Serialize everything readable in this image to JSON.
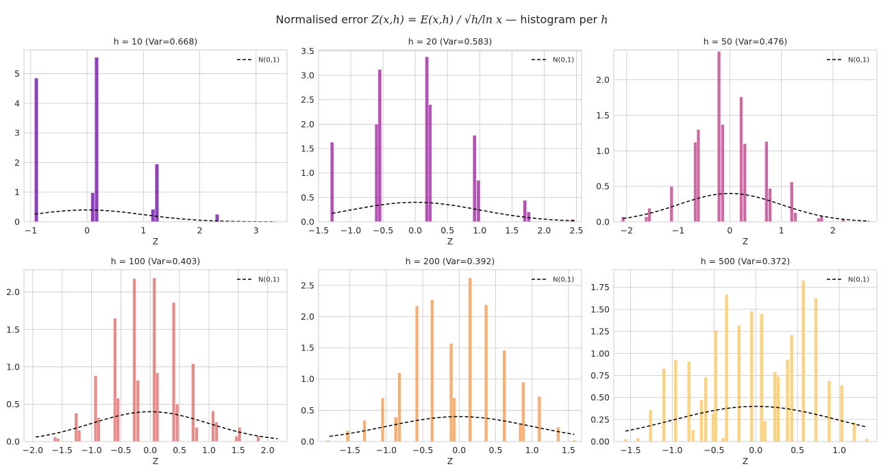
{
  "title": "Normalised error Z(x,h) = E(x,h) / √(h/ln x) — histogram per h",
  "title_parts": {
    "lead": "Normalised error ",
    "math": "Z(x,h) = E(x,h) / √h/ln x",
    "tail": " — histogram per ",
    "h": "h"
  },
  "chart_data": [
    {
      "type": "bar",
      "title": "h = 10  (Var=0.668)",
      "xlabel": "Z",
      "color": "#6a00a8",
      "xlim": [
        -1.12,
        3.55
      ],
      "ylim": [
        0,
        5.8
      ],
      "xticks": [
        -1,
        0,
        1,
        2,
        3
      ],
      "xticklabels": [
        "−1",
        "0",
        "1",
        "2",
        "3"
      ],
      "yticks": [
        0,
        1,
        2,
        3,
        4,
        5
      ],
      "yticklabels": [
        "0",
        "1",
        "2",
        "3",
        "4",
        "5"
      ],
      "bin_width": 0.066,
      "bins": [
        [
          -0.9,
          4.85
        ],
        [
          0.1,
          0.98
        ],
        [
          0.17,
          5.55
        ],
        [
          1.17,
          0.42
        ],
        [
          1.24,
          1.95
        ],
        [
          2.31,
          0.25
        ]
      ],
      "legend": "N(0,1)",
      "normal_range": [
        -0.93,
        3.35
      ]
    },
    {
      "type": "bar",
      "title": "h = 20  (Var=0.583)",
      "xlabel": "Z",
      "color": "#9c179e",
      "xlim": [
        -1.5,
        2.58
      ],
      "ylim": [
        0,
        3.52
      ],
      "xticks": [
        -1.5,
        -1.0,
        -0.5,
        0.0,
        0.5,
        1.0,
        1.5,
        2.0,
        2.5
      ],
      "xticklabels": [
        "−1.5",
        "−1.0",
        "−0.5",
        "0.0",
        "0.5",
        "1.0",
        "1.5",
        "2.0",
        "2.5"
      ],
      "yticks": [
        0,
        0.5,
        1.0,
        1.5,
        2.0,
        2.5,
        3.0,
        3.5
      ],
      "yticklabels": [
        "0.0",
        "0.5",
        "1.0",
        "1.5",
        "2.0",
        "2.5",
        "3.0",
        "3.5"
      ],
      "bin_width": 0.054,
      "bins": [
        [
          -1.29,
          1.63
        ],
        [
          -0.6,
          2.0
        ],
        [
          -0.55,
          3.12
        ],
        [
          0.18,
          3.38
        ],
        [
          0.23,
          2.4
        ],
        [
          0.92,
          1.77
        ],
        [
          0.98,
          0.85
        ],
        [
          1.7,
          0.44
        ],
        [
          1.76,
          0.2
        ],
        [
          2.44,
          0.05
        ]
      ],
      "legend": "N(0,1)",
      "normal_range": [
        -1.29,
        2.47
      ]
    },
    {
      "type": "bar",
      "title": "h = 50  (Var=0.476)",
      "xlabel": "Z",
      "color": "#bd3786",
      "xlim": [
        -2.25,
        2.85
      ],
      "ylim": [
        0,
        2.42
      ],
      "xticks": [
        -2,
        -1,
        0,
        1,
        2
      ],
      "xticklabels": [
        "−2",
        "−1",
        "0",
        "1",
        "2"
      ],
      "yticks": [
        0,
        0.5,
        1.0,
        1.5,
        2.0
      ],
      "yticklabels": [
        "0.0",
        "0.5",
        "1.0",
        "1.5",
        "2.0"
      ],
      "bin_width": 0.063,
      "bins": [
        [
          -2.07,
          0.07
        ],
        [
          -1.62,
          0.07
        ],
        [
          -1.56,
          0.19
        ],
        [
          -1.13,
          0.5
        ],
        [
          -0.67,
          1.12
        ],
        [
          -0.61,
          1.3
        ],
        [
          -0.21,
          2.4
        ],
        [
          -0.14,
          1.37
        ],
        [
          0.22,
          1.76
        ],
        [
          0.29,
          1.1
        ],
        [
          0.71,
          1.13
        ],
        [
          0.78,
          0.47
        ],
        [
          1.2,
          0.56
        ],
        [
          1.27,
          0.13
        ],
        [
          1.72,
          0.05
        ],
        [
          1.78,
          0.08
        ],
        [
          2.2,
          0.03
        ]
      ],
      "legend": "N(0,1)",
      "normal_range": [
        -2.07,
        2.7
      ]
    },
    {
      "type": "bar",
      "title": "h = 100  (Var=0.403)",
      "xlabel": "Z",
      "color": "#e16462",
      "xlim": [
        -2.15,
        2.33
      ],
      "ylim": [
        0,
        2.3
      ],
      "xticks": [
        -2.0,
        -1.5,
        -1.0,
        -0.5,
        0.0,
        0.5,
        1.0,
        1.5,
        2.0
      ],
      "xticklabels": [
        "−2.0",
        "−1.5",
        "−1.0",
        "−0.5",
        "0.0",
        "0.5",
        "1.0",
        "1.5",
        "2.0"
      ],
      "yticks": [
        0,
        0.5,
        1.0,
        1.5,
        2.0
      ],
      "yticklabels": [
        "0.0",
        "0.5",
        "1.0",
        "1.5",
        "2.0"
      ],
      "bin_width": 0.055,
      "bins": [
        [
          -1.62,
          0.06
        ],
        [
          -1.57,
          0.04
        ],
        [
          -1.26,
          0.38
        ],
        [
          -1.21,
          0.15
        ],
        [
          -0.93,
          0.88
        ],
        [
          -0.88,
          0.32
        ],
        [
          -0.6,
          1.65
        ],
        [
          -0.55,
          0.58
        ],
        [
          -0.27,
          2.18
        ],
        [
          -0.21,
          0.82
        ],
        [
          0.07,
          2.19
        ],
        [
          0.12,
          0.92
        ],
        [
          0.4,
          1.86
        ],
        [
          0.46,
          0.5
        ],
        [
          0.73,
          1.04
        ],
        [
          0.79,
          0.19
        ],
        [
          1.07,
          0.41
        ],
        [
          1.13,
          0.26
        ],
        [
          1.47,
          0.07
        ],
        [
          1.52,
          0.19
        ],
        [
          1.84,
          0.07
        ]
      ],
      "legend": "N(0,1)",
      "normal_range": [
        -1.95,
        2.17
      ]
    },
    {
      "type": "bar",
      "title": "h = 200  (Var=0.392)",
      "xlabel": "Z",
      "color": "#f89441",
      "xlim": [
        -1.93,
        1.68
      ],
      "ylim": [
        0,
        2.75
      ],
      "xticks": [
        -1.5,
        -1.0,
        -0.5,
        0.0,
        0.5,
        1.0,
        1.5
      ],
      "xticklabels": [
        "−1.5",
        "−1.0",
        "−0.5",
        "0.0",
        "0.5",
        "1.0",
        "1.5"
      ],
      "yticks": [
        0,
        0.5,
        1.0,
        1.5,
        2.0,
        2.5
      ],
      "yticklabels": [
        "0.0",
        "0.5",
        "1.0",
        "1.5",
        "2.0",
        "2.5"
      ],
      "bin_width": 0.045,
      "bins": [
        [
          -1.8,
          0.02
        ],
        [
          -1.53,
          0.17
        ],
        [
          -1.3,
          0.34
        ],
        [
          -1.05,
          0.7
        ],
        [
          -0.87,
          0.39
        ],
        [
          -0.82,
          1.1
        ],
        [
          -0.58,
          2.17
        ],
        [
          -0.37,
          2.27
        ],
        [
          -0.11,
          1.57
        ],
        [
          -0.07,
          0.7
        ],
        [
          0.15,
          2.62
        ],
        [
          0.37,
          2.19
        ],
        [
          0.62,
          1.46
        ],
        [
          0.84,
          0.28
        ],
        [
          0.88,
          0.95
        ],
        [
          1.1,
          0.72
        ],
        [
          1.36,
          0.23
        ],
        [
          1.58,
          0.02
        ]
      ],
      "legend": "N(0,1)",
      "normal_range": [
        -1.78,
        1.58
      ]
    },
    {
      "type": "bar",
      "title": "h = 500  (Var=0.372)",
      "xlabel": "Z",
      "color": "#fcc454",
      "xlim": [
        -1.7,
        1.45
      ],
      "ylim": [
        0,
        1.95
      ],
      "xticks": [
        -1.5,
        -1.0,
        -0.5,
        0.0,
        0.5,
        1.0
      ],
      "xticklabels": [
        "−1.5",
        "−1.0",
        "−0.5",
        "0.0",
        "0.5",
        "1.0"
      ],
      "yticks": [
        0,
        0.25,
        0.5,
        0.75,
        1.0,
        1.25,
        1.5,
        1.75
      ],
      "yticklabels": [
        "0.00",
        "0.25",
        "0.50",
        "0.75",
        "1.00",
        "1.25",
        "1.50",
        "1.75"
      ],
      "bin_width": 0.04,
      "bins": [
        [
          -1.56,
          0.03
        ],
        [
          -1.41,
          0.04
        ],
        [
          -1.26,
          0.36
        ],
        [
          -1.1,
          0.83
        ],
        [
          -0.96,
          0.93
        ],
        [
          -0.8,
          0.91
        ],
        [
          -0.75,
          0.13
        ],
        [
          -0.65,
          0.47
        ],
        [
          -0.6,
          0.73
        ],
        [
          -0.51,
          0.32
        ],
        [
          -0.48,
          1.26
        ],
        [
          -0.39,
          0.04
        ],
        [
          -0.35,
          1.67
        ],
        [
          -0.2,
          1.32
        ],
        [
          -0.05,
          1.48
        ],
        [
          0.07,
          1.45
        ],
        [
          0.11,
          0.23
        ],
        [
          0.23,
          0.79
        ],
        [
          0.27,
          0.74
        ],
        [
          0.38,
          0.93
        ],
        [
          0.43,
          1.21
        ],
        [
          0.57,
          1.83
        ],
        [
          0.72,
          1.63
        ],
        [
          0.88,
          0.69
        ],
        [
          1.03,
          0.64
        ],
        [
          1.18,
          0.22
        ],
        [
          1.33,
          0.03
        ]
      ],
      "legend": "N(0,1)",
      "normal_range": [
        -1.56,
        1.32
      ]
    }
  ]
}
